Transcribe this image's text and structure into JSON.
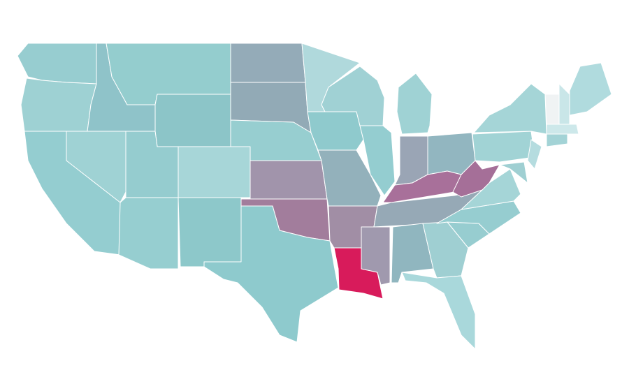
{
  "map": {
    "border_color": "#ffffff",
    "regions": [
      {
        "color": "#97cdd0"
      },
      {
        "color": "#9ed1d3"
      },
      {
        "color": "#94cdd0"
      },
      {
        "color": "#9fd2d4"
      },
      {
        "color": "#8fc3c9"
      },
      {
        "color": "#94cdce"
      },
      {
        "color": "#8cc5c8"
      },
      {
        "color": "#95cccf"
      },
      {
        "color": "#a7d6d8"
      },
      {
        "color": "#96ced0"
      },
      {
        "color": "#8dc8ca"
      },
      {
        "color": "#94abb8"
      },
      {
        "color": "#92aab6"
      },
      {
        "color": "#97ced0"
      },
      {
        "color": "#a194ab"
      },
      {
        "color": "#a27d9c"
      },
      {
        "color": "#8ecacd"
      },
      {
        "color": "#b0d9dc"
      },
      {
        "color": "#8fcacd"
      },
      {
        "color": "#93b1bb"
      },
      {
        "color": "#a18ea5"
      },
      {
        "color": "#d81b5b"
      },
      {
        "color": "#a0d1d4"
      },
      {
        "color": "#94cdd0"
      },
      {
        "color": "#9fd2d4"
      },
      {
        "color": "#9aa5b5"
      },
      {
        "color": "#92b6c0"
      },
      {
        "color": "#a8709a"
      },
      {
        "color": "#96a9b6"
      },
      {
        "color": "#a099ae"
      },
      {
        "color": "#90b6bf"
      },
      {
        "color": "#9fcfd2"
      },
      {
        "color": "#a9d8db"
      },
      {
        "color": "#97cdd0"
      },
      {
        "color": "#96cdd0"
      },
      {
        "color": "#a5d5d7"
      },
      {
        "color": "#a56f98"
      },
      {
        "color": "#a1d3d5"
      },
      {
        "color": "#a5d5d7"
      },
      {
        "color": "#b5dcdf"
      },
      {
        "color": "#9fcfd2"
      },
      {
        "color": "#f0f3f4"
      },
      {
        "color": "#c9e6e8"
      },
      {
        "color": "#b0dbde"
      },
      {
        "color": "#cde8ea"
      },
      {
        "color": "#a3d3d6"
      }
    ]
  }
}
